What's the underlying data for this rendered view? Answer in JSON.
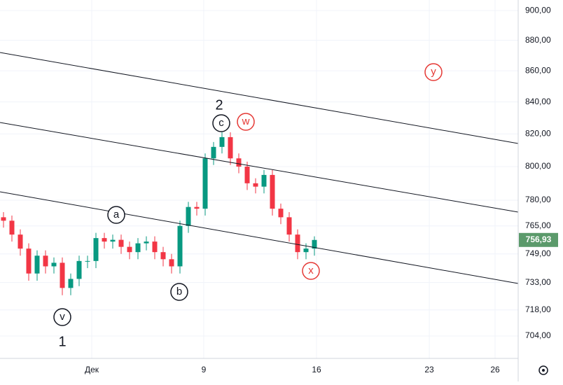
{
  "chart_data": {
    "type": "candlestick",
    "log_scale": true,
    "grid": true,
    "up_color": "#089981",
    "down_color": "#f23645",
    "x": [
      0,
      1,
      2,
      3,
      4,
      5,
      6,
      7,
      8,
      9,
      10,
      11,
      12,
      13,
      14,
      15,
      16,
      17,
      18,
      19,
      20,
      21,
      22,
      23,
      24,
      25,
      26,
      27,
      28,
      29,
      30,
      31,
      32,
      33,
      34,
      35,
      36,
      37
    ],
    "open": [
      770,
      768,
      760,
      752,
      738,
      748,
      742,
      744,
      730,
      735,
      745,
      745,
      758,
      756,
      757,
      753,
      750,
      755,
      756,
      750,
      746,
      742,
      765,
      776,
      775,
      805,
      812,
      818,
      805,
      800,
      790,
      788,
      795,
      775,
      770,
      760,
      750,
      752
    ],
    "high": [
      773,
      771,
      763,
      755,
      751,
      751,
      747,
      747,
      738,
      748,
      748,
      761,
      761,
      760,
      760,
      756,
      758,
      759,
      759,
      753,
      749,
      768,
      779,
      779,
      808,
      815,
      821,
      821,
      808,
      803,
      793,
      798,
      798,
      778,
      773,
      763,
      755,
      759
    ],
    "low": [
      764,
      756,
      748,
      734,
      734,
      738,
      738,
      726,
      726,
      731,
      741,
      741,
      752,
      752,
      749,
      746,
      746,
      751,
      746,
      742,
      738,
      738,
      761,
      771,
      771,
      801,
      808,
      801,
      796,
      786,
      784,
      784,
      771,
      766,
      756,
      746,
      746,
      748
    ],
    "close": [
      768,
      760,
      752,
      738,
      748,
      742,
      744,
      730,
      735,
      745,
      745,
      758,
      756,
      757,
      753,
      750,
      755,
      756,
      750,
      746,
      742,
      765,
      776,
      775,
      805,
      812,
      818,
      805,
      800,
      790,
      788,
      795,
      775,
      770,
      760,
      750,
      752,
      756.93
    ],
    "xlim": [
      -0.417,
      61.25
    ],
    "xticks": [
      {
        "value": 10.5,
        "label": "Дек"
      },
      {
        "value": 23.83,
        "label": "9"
      },
      {
        "value": 37.25,
        "label": "16"
      },
      {
        "value": 50.67,
        "label": "23"
      },
      {
        "value": 58.5,
        "label": "26"
      }
    ],
    "ylim": [
      692.2,
      907.2
    ],
    "yticks": [
      {
        "value": 900,
        "label": "900,00"
      },
      {
        "value": 880,
        "label": "880,00"
      },
      {
        "value": 860,
        "label": "860,00"
      },
      {
        "value": 840,
        "label": "840,00"
      },
      {
        "value": 820,
        "label": "820,00"
      },
      {
        "value": 800,
        "label": "800,00"
      },
      {
        "value": 780,
        "label": "780,00"
      },
      {
        "value": 765,
        "label": "765,00"
      },
      {
        "value": 749,
        "label": "749,00"
      },
      {
        "value": 733,
        "label": "733,00"
      },
      {
        "value": 718,
        "label": "718,00"
      },
      {
        "value": 704,
        "label": "704,00"
      }
    ],
    "last_price": {
      "value": 756.93,
      "label": "756,93"
    },
    "annotations": [
      "1",
      "2",
      "a",
      "b",
      "c",
      "v",
      "w",
      "x",
      "y"
    ]
  }
}
